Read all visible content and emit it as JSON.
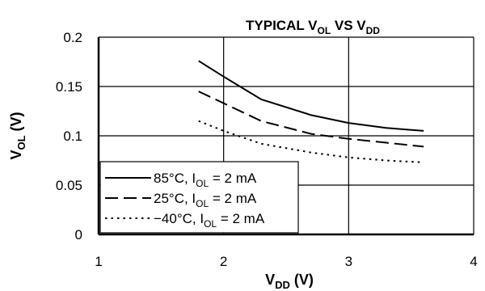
{
  "chart_data": {
    "type": "line",
    "title": {
      "main": "TYPICAL V",
      "sub1": "OL",
      "mid": " VS V",
      "sub2": "DD"
    },
    "xlabel": {
      "main": "V",
      "sub": "DD",
      "rest": " (V)"
    },
    "ylabel": {
      "main": "V",
      "sub": "OL",
      "rest": " (V)"
    },
    "xlim": [
      1,
      4
    ],
    "ylim": [
      0,
      0.2
    ],
    "x_ticks": [
      1,
      2,
      3,
      4
    ],
    "x_tick_labels": [
      "1",
      "2",
      "3",
      "4"
    ],
    "y_ticks": [
      0,
      0.05,
      0.1,
      0.15,
      0.2
    ],
    "y_tick_labels": [
      "0",
      "0.05",
      "0.1",
      "0.15",
      "0.2"
    ],
    "grid": true,
    "legend_position": "bottom-left",
    "series": [
      {
        "name": "85°C, I",
        "name_sub": "OL",
        "name_rest": " = 2 mA",
        "style": "solid",
        "color": "#000000",
        "x": [
          1.8,
          2.0,
          2.3,
          2.7,
          3.0,
          3.3,
          3.6
        ],
        "y": [
          0.176,
          0.16,
          0.137,
          0.121,
          0.113,
          0.108,
          0.105
        ]
      },
      {
        "name": "25°C, I",
        "name_sub": "OL",
        "name_rest": " = 2 mA",
        "style": "dashed",
        "color": "#000000",
        "x": [
          1.8,
          2.0,
          2.3,
          2.7,
          3.0,
          3.3,
          3.6
        ],
        "y": [
          0.145,
          0.133,
          0.115,
          0.102,
          0.097,
          0.093,
          0.089
        ]
      },
      {
        "name": "−40°C, I",
        "name_sub": "OL",
        "name_rest": " = 2 mA",
        "style": "dotted",
        "color": "#000000",
        "x": [
          1.8,
          2.0,
          2.3,
          2.7,
          3.0,
          3.3,
          3.6
        ],
        "y": [
          0.115,
          0.105,
          0.092,
          0.083,
          0.078,
          0.075,
          0.073
        ]
      }
    ]
  }
}
